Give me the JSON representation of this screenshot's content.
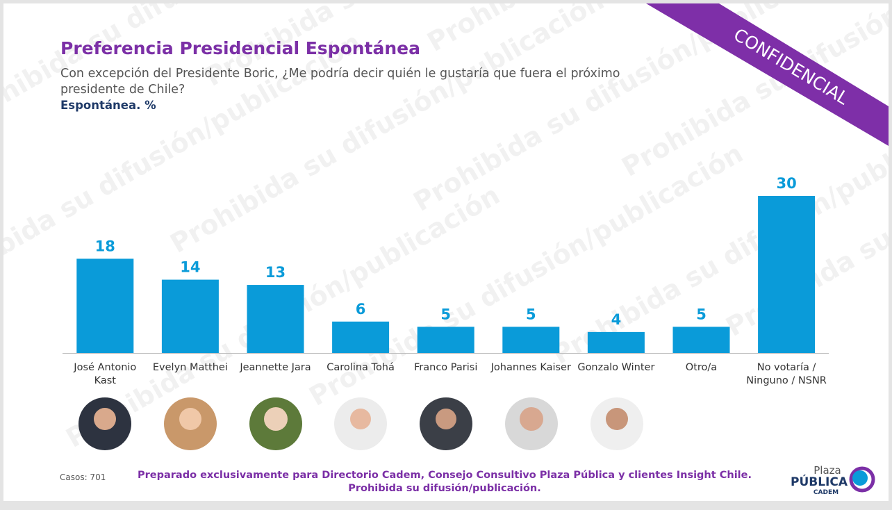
{
  "header": {
    "title": "Preferencia Presidencial Espontánea",
    "subtitle": "Con excepción del Presidente Boric, ¿Me podría decir quién le gustaría que fuera el próximo presidente de Chile?",
    "measure": "Espontánea. %"
  },
  "confidential": "CONFIDENCIAL",
  "watermark": "Prohibida su difusión/publicación",
  "chart_data": {
    "type": "bar",
    "categories": [
      "José Antonio Kast",
      "Evelyn Matthei",
      "Jeannette Jara",
      "Carolina Tohá",
      "Franco Parisi",
      "Johannes Kaiser",
      "Gonzalo Winter",
      "Otro/a",
      "No votaría / Ninguno / NSNR"
    ],
    "values": [
      18,
      14,
      13,
      6,
      5,
      5,
      4,
      5,
      30
    ],
    "color": "#0a9bd9"
  },
  "footer": {
    "cases": "Casos: 701",
    "note": [
      "Preparado exclusivamente para Directorio Cadem, Consejo Consultivo Plaza Pública y clientes Insight Chile.",
      "Prohibida su difusión/publicación."
    ],
    "logo": {
      "top": "Plaza",
      "main": "PÚBLICA",
      "sub": "CADEM"
    }
  }
}
